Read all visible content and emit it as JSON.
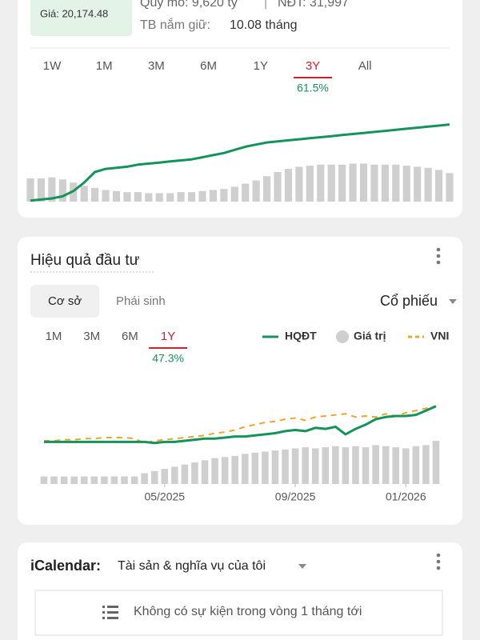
{
  "header": {
    "price_label": "Giá: 20,174.48",
    "scale": "Quy mô: 9,620 tỷ",
    "separator": "|",
    "investors": "NĐT: 31,997",
    "holding_label": "TB nắm giữ:",
    "holding_value": "10.08 tháng"
  },
  "performance": {
    "title": "Hiệu quả đầu tư",
    "tabs": [
      "Cơ sở",
      "Phái sinh"
    ],
    "selected_tab": 0,
    "dropdown": "Cổ phiếu"
  },
  "calendar": {
    "label": "iCalendar:",
    "dropdown": "Tài sản & nghĩa vụ của tôi",
    "empty_message": "Không có sự kiện trong vòng 1 tháng tới"
  },
  "chart_data": [
    {
      "type": "line",
      "periods": [
        "1W",
        "1M",
        "3M",
        "6M",
        "1Y",
        "3Y",
        "All"
      ],
      "selected_period": 5,
      "period_return": "61.5%",
      "xlim": [
        0,
        39
      ],
      "ylim": [
        0,
        100
      ],
      "series": [
        {
          "type": "bar",
          "color": "#cfcfcf",
          "values": [
            22,
            22,
            23,
            21,
            18,
            15,
            13,
            11,
            10,
            9,
            9,
            8,
            8,
            8,
            9,
            9,
            10,
            11,
            12,
            14,
            17,
            20,
            24,
            28,
            31,
            33,
            34,
            35,
            35,
            35,
            36,
            36,
            35,
            35,
            35,
            34,
            33,
            32,
            30,
            27
          ]
        },
        {
          "type": "line",
          "color": "#14935a",
          "values": [
            1,
            2,
            3,
            5,
            10,
            18,
            28,
            31,
            32,
            33,
            35,
            36,
            37,
            38,
            39,
            40,
            42,
            44,
            46,
            49,
            52,
            54,
            56,
            57,
            58,
            59,
            60,
            61,
            62,
            63,
            64,
            65,
            66,
            67,
            68,
            69,
            70,
            71,
            72,
            73
          ]
        }
      ]
    },
    {
      "type": "line",
      "periods": [
        "1M",
        "3M",
        "6M",
        "1Y"
      ],
      "selected_period": 3,
      "period_return": "47.3%",
      "xlim": [
        0,
        39
      ],
      "ylim": [
        0,
        100
      ],
      "xticks": [
        {
          "value": 12,
          "label": "05/2025"
        },
        {
          "value": 25,
          "label": "09/2025"
        },
        {
          "value": 36,
          "label": "01/2026"
        }
      ],
      "series": [
        {
          "name": "Giá trị",
          "type": "bar",
          "color": "#cfcfcf",
          "values": [
            7,
            7,
            7,
            7,
            7,
            7,
            7,
            7,
            7,
            7,
            10,
            12,
            14,
            16,
            18,
            20,
            22,
            24,
            25,
            26,
            28,
            29,
            30,
            31,
            32,
            33,
            34,
            33,
            34,
            35,
            34,
            35,
            34,
            36,
            35,
            34,
            33,
            35,
            36,
            40
          ]
        },
        {
          "name": "VNI",
          "type": "line",
          "dashed": true,
          "color": "#f0a42a",
          "values": [
            40,
            40,
            41,
            41,
            42,
            42,
            43,
            43,
            43,
            42,
            38,
            40,
            41,
            42,
            43,
            44,
            45,
            47,
            48,
            50,
            53,
            55,
            57,
            58,
            60,
            61,
            59,
            62,
            63,
            64,
            65,
            62,
            63,
            62,
            65,
            63,
            66,
            68,
            70,
            72
          ]
        },
        {
          "name": "HQĐT",
          "type": "line",
          "color": "#14935a",
          "values": [
            39,
            39,
            39,
            39,
            39,
            39,
            39,
            39,
            39,
            39,
            39,
            38,
            39,
            39,
            40,
            41,
            42,
            42,
            43,
            44,
            44,
            45,
            46,
            47,
            49,
            50,
            49,
            52,
            51,
            53,
            46,
            51,
            55,
            60,
            62,
            63,
            63,
            64,
            68,
            72
          ]
        }
      ],
      "legend_order": [
        2,
        0,
        1
      ]
    }
  ]
}
